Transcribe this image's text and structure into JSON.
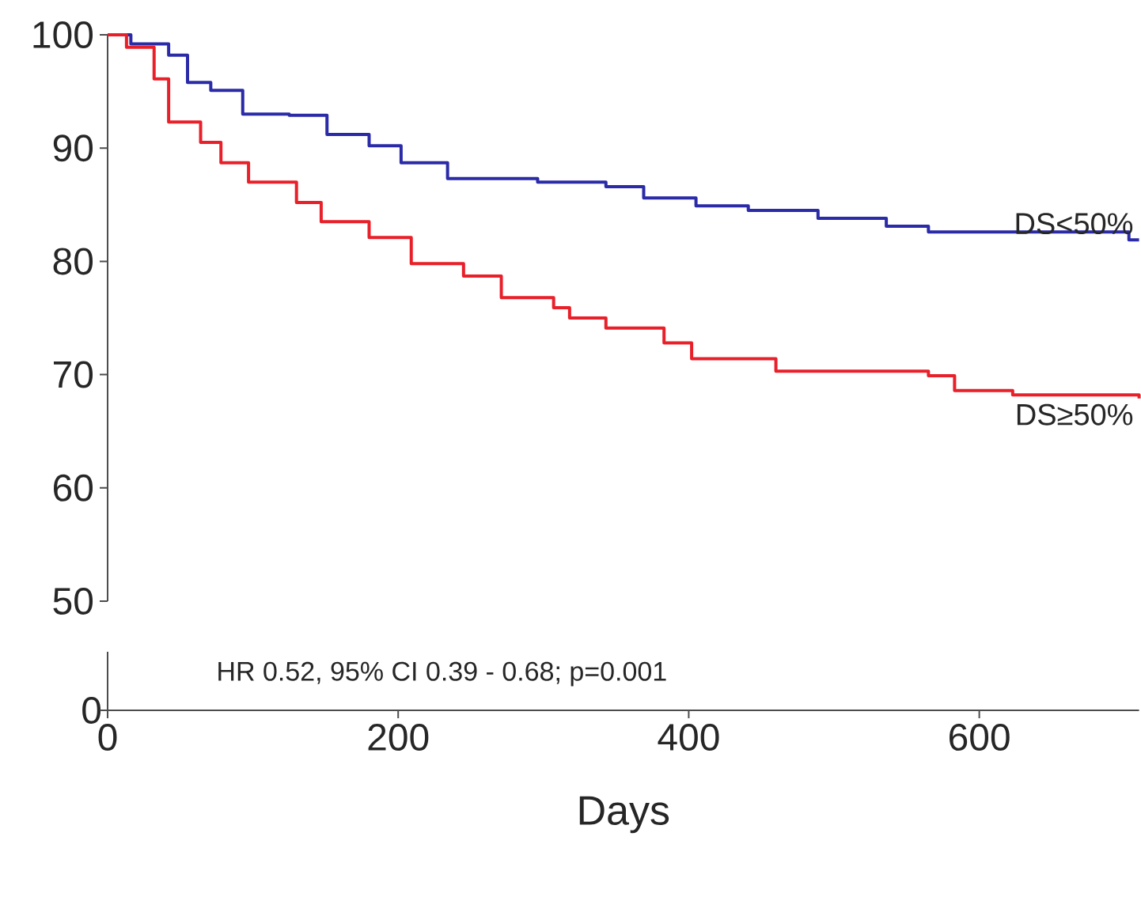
{
  "chart_data": {
    "type": "step",
    "xlim": [
      0,
      710
    ],
    "xticks": [
      0,
      200,
      400,
      600
    ],
    "xlabel": "Days",
    "ylim": [
      50,
      100
    ],
    "yticks": [
      50,
      60,
      70,
      80,
      90,
      100
    ],
    "annotations": [
      "0",
      "HR 0.52, 95% CI  0.39 - 0.68;  p=0.001"
    ],
    "series": [
      {
        "name": "DS<50%",
        "color": "#2b2ba8",
        "x": [
          0,
          16,
          42,
          55,
          71,
          93,
          125,
          151,
          180,
          202,
          234,
          296,
          343,
          369,
          405,
          441,
          489,
          536,
          565,
          692,
          703,
          710
        ],
        "values": [
          100,
          99.2,
          98.2,
          95.8,
          95.1,
          93.0,
          92.9,
          91.2,
          90.2,
          88.7,
          87.3,
          87.0,
          86.6,
          85.6,
          84.9,
          84.5,
          83.8,
          83.1,
          82.6,
          82.6,
          81.9,
          81.9
        ]
      },
      {
        "name": "DS≥50%",
        "color": "#e8202a",
        "x": [
          0,
          13,
          32,
          42,
          64,
          78,
          97,
          130,
          147,
          180,
          209,
          245,
          271,
          307,
          318,
          343,
          383,
          402,
          460,
          565,
          583,
          623,
          710
        ],
        "values": [
          100,
          98.9,
          96.1,
          92.3,
          90.5,
          88.7,
          87.0,
          85.2,
          83.5,
          82.1,
          79.8,
          78.7,
          76.8,
          75.9,
          75.0,
          74.1,
          72.8,
          71.4,
          70.3,
          69.9,
          68.6,
          68.2,
          67.9
        ]
      }
    ]
  }
}
